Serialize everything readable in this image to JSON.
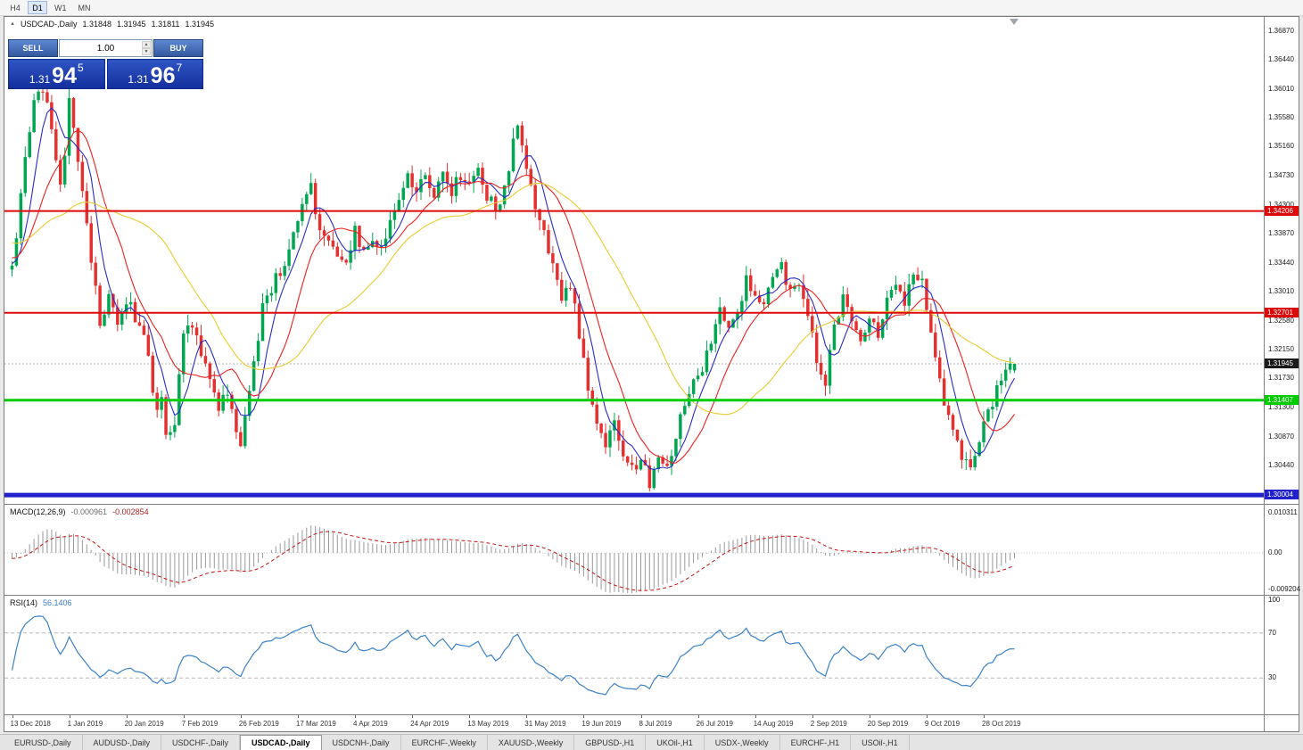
{
  "window": {
    "toolbar": {
      "timeframes": [
        "H4",
        "D1",
        "W1",
        "MN"
      ],
      "active_timeframe": "D1"
    }
  },
  "icons": {
    "collapse": "▲",
    "spin_up": "▲",
    "spin_down": "▼",
    "shift_marker": "triangle-down"
  },
  "chart": {
    "symbol_period": "USDCAD-,Daily",
    "ohlc": {
      "open": "1.31848",
      "high": "1.31945",
      "low": "1.31811",
      "close": "1.31945"
    }
  },
  "one_click": {
    "sell_label": "SELL",
    "buy_label": "BUY",
    "volume": "1.00",
    "sell_price": {
      "big_prefix": "1.31",
      "big": "94",
      "sup": "5"
    },
    "buy_price": {
      "big_prefix": "1.31",
      "big": "96",
      "sup": "7"
    }
  },
  "price_axis": {
    "current_price": "1.31945"
  },
  "macd_panel": {
    "label": "MACD(12,26,9)",
    "value_main": "-0.000961",
    "value_signal": "-0.002854"
  },
  "rsi_panel": {
    "label": "RSI(14)",
    "value": "56.1406"
  },
  "tabs": {
    "items": [
      "EURUSD-,Daily",
      "AUDUSD-,Daily",
      "USDCHF-,Daily",
      "USDCAD-,Daily",
      "USDCNH-,Daily",
      "EURCHF-,Weekly",
      "XAUUSD-,Weekly",
      "GBPUSD-,H1",
      "UKOil-,H1",
      "USDX-,Weekly",
      "EURCHF-,H1",
      "USOil-,H1"
    ],
    "active": "USDCAD-,Daily"
  },
  "chart_data": {
    "type": "candlestick",
    "symbol": "USDCAD",
    "timeframe": "Daily",
    "y_axis_labels": [
      "1.36870",
      "1.36440",
      "1.36010",
      "1.35580",
      "1.35160",
      "1.34730",
      "1.34300",
      "1.33870",
      "1.33440",
      "1.33010",
      "1.32580",
      "1.32150",
      "1.31730",
      "1.31300",
      "1.30870",
      "1.30440"
    ],
    "x_axis_labels": [
      "13 Dec 2018",
      "1 Jan 2019",
      "20 Jan 2019",
      "7 Feb 2019",
      "26 Feb 2019",
      "17 Mar 2019",
      "4 Apr 2019",
      "24 Apr 2019",
      "13 May 2019",
      "31 May 2019",
      "19 Jun 2019",
      "8 Jul 2019",
      "26 Jul 2019",
      "14 Aug 2019",
      "2 Sep 2019",
      "20 Sep 2019",
      "9 Oct 2019",
      "28 Oct 2019"
    ],
    "x_label_candle_step": 13,
    "price_range": [
      1.299,
      1.3705
    ],
    "candle_count": 229,
    "current_price": 1.31945,
    "candle_up_color": "#00a650",
    "candle_down_color": "#e53030",
    "seed": 1234,
    "noise": 0.0019,
    "wick": 0.0016,
    "prehistory_bars": 40,
    "prehistory_start": 1.342,
    "moving_averages": [
      {
        "period": 6,
        "color": "#2a2ac8"
      },
      {
        "period": 13,
        "color": "#f02020"
      },
      {
        "period": 34,
        "color": "#e8cc30"
      }
    ],
    "horizontal_lines": [
      {
        "price": 1.34206,
        "label": "1.34206",
        "color": "#dd0808",
        "width": 2
      },
      {
        "price": 1.32701,
        "label": "1.32701",
        "color": "#dd0808",
        "width": 2
      },
      {
        "price": 1.31407,
        "label": "1.31407",
        "color": "#00cc00",
        "width": 3
      },
      {
        "price": 1.30004,
        "label": "1.30004",
        "color": "#2121cc",
        "width": 5
      }
    ],
    "macd": {
      "fast": 12,
      "slow": 26,
      "signal": 9,
      "histogram_color": "#9a9a9a",
      "signal_color": "#c41414",
      "axis_labels": [
        "0.010311",
        "0.00",
        "-0.009204"
      ]
    },
    "rsi": {
      "period": 14,
      "color": "#3c82c8",
      "levels": [
        70,
        30
      ],
      "axis_labels": [
        "100",
        "70",
        "30"
      ]
    },
    "waypoints": [
      [
        0,
        1.334
      ],
      [
        1,
        1.338
      ],
      [
        3,
        1.35
      ],
      [
        5,
        1.358
      ],
      [
        7,
        1.36
      ],
      [
        9,
        1.3545
      ],
      [
        11,
        1.3465
      ],
      [
        12,
        1.35
      ],
      [
        13,
        1.3595
      ],
      [
        14,
        1.355
      ],
      [
        16,
        1.345
      ],
      [
        18,
        1.335
      ],
      [
        20,
        1.3255
      ],
      [
        22,
        1.329
      ],
      [
        24,
        1.325
      ],
      [
        26,
        1.329
      ],
      [
        28,
        1.3265
      ],
      [
        30,
        1.324
      ],
      [
        31,
        1.32
      ],
      [
        33,
        1.312
      ],
      [
        34,
        1.315
      ],
      [
        35,
        1.308
      ],
      [
        37,
        1.311
      ],
      [
        39,
        1.323
      ],
      [
        41,
        1.3255
      ],
      [
        43,
        1.321
      ],
      [
        45,
        1.318
      ],
      [
        47,
        1.313
      ],
      [
        49,
        1.3155
      ],
      [
        51,
        1.309
      ],
      [
        52,
        1.3075
      ],
      [
        54,
        1.315
      ],
      [
        57,
        1.328
      ],
      [
        60,
        1.332
      ],
      [
        63,
        1.336
      ],
      [
        66,
        1.343
      ],
      [
        68,
        1.3455
      ],
      [
        70,
        1.339
      ],
      [
        73,
        1.336
      ],
      [
        76,
        1.335
      ],
      [
        78,
        1.339
      ],
      [
        80,
        1.3355
      ],
      [
        82,
        1.338
      ],
      [
        84,
        1.336
      ],
      [
        86,
        1.341
      ],
      [
        88,
        1.344
      ],
      [
        90,
        1.3475
      ],
      [
        92,
        1.345
      ],
      [
        94,
        1.347
      ],
      [
        96,
        1.344
      ],
      [
        98,
        1.347
      ],
      [
        100,
        1.345
      ],
      [
        102,
        1.3475
      ],
      [
        104,
        1.346
      ],
      [
        106,
        1.348
      ],
      [
        108,
        1.344
      ],
      [
        110,
        1.3425
      ],
      [
        112,
        1.345
      ],
      [
        114,
        1.352
      ],
      [
        115,
        1.3545
      ],
      [
        117,
        1.348
      ],
      [
        119,
        1.3425
      ],
      [
        121,
        1.339
      ],
      [
        123,
        1.334
      ],
      [
        125,
        1.329
      ],
      [
        127,
        1.3315
      ],
      [
        129,
        1.324
      ],
      [
        131,
        1.316
      ],
      [
        133,
        1.31
      ],
      [
        135,
        1.307
      ],
      [
        137,
        1.3115
      ],
      [
        139,
        1.306
      ],
      [
        141,
        1.304
      ],
      [
        143,
        1.3055
      ],
      [
        145,
        1.302
      ],
      [
        147,
        1.3065
      ],
      [
        149,
        1.3045
      ],
      [
        151,
        1.309
      ],
      [
        153,
        1.314
      ],
      [
        155,
        1.3165
      ],
      [
        157,
        1.319
      ],
      [
        159,
        1.3225
      ],
      [
        161,
        1.3285
      ],
      [
        163,
        1.3245
      ],
      [
        165,
        1.327
      ],
      [
        167,
        1.332
      ],
      [
        169,
        1.33
      ],
      [
        171,
        1.329
      ],
      [
        173,
        1.332
      ],
      [
        175,
        1.334
      ],
      [
        177,
        1.33
      ],
      [
        179,
        1.332
      ],
      [
        181,
        1.327
      ],
      [
        183,
        1.32
      ],
      [
        185,
        1.317
      ],
      [
        187,
        1.3245
      ],
      [
        189,
        1.329
      ],
      [
        191,
        1.3255
      ],
      [
        193,
        1.323
      ],
      [
        195,
        1.327
      ],
      [
        197,
        1.324
      ],
      [
        199,
        1.329
      ],
      [
        201,
        1.332
      ],
      [
        203,
        1.329
      ],
      [
        205,
        1.3335
      ],
      [
        207,
        1.332
      ],
      [
        208,
        1.328
      ],
      [
        210,
        1.321
      ],
      [
        212,
        1.313
      ],
      [
        214,
        1.309
      ],
      [
        216,
        1.306
      ],
      [
        218,
        1.305
      ],
      [
        220,
        1.308
      ],
      [
        222,
        1.312
      ],
      [
        224,
        1.316
      ],
      [
        226,
        1.318
      ],
      [
        228,
        1.31945
      ]
    ]
  }
}
